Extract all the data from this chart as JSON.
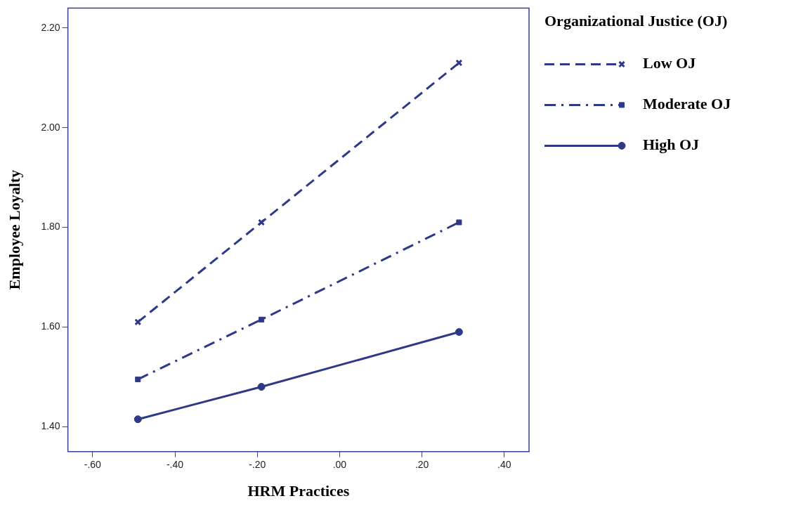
{
  "chart_data": {
    "type": "line",
    "xlabel": "HRM Practices",
    "ylabel": "Employee Loyalty",
    "legend_title": "Organizational Justice (OJ)",
    "legend": "top right",
    "xlim": [
      -0.66,
      0.46
    ],
    "xticks": [
      {
        "value": -0.6,
        "label": "-.60"
      },
      {
        "value": -0.4,
        "label": "-.40"
      },
      {
        "value": -0.2,
        "label": "-.20"
      },
      {
        "value": 0,
        "label": ".00"
      },
      {
        "value": 0.2,
        "label": ".20"
      },
      {
        "value": 0.4,
        "label": ".40"
      }
    ],
    "ylim": [
      1.35,
      2.24
    ],
    "yticks": [
      {
        "value": 1.4,
        "label": "1.40"
      },
      {
        "value": 1.6,
        "label": "1.60"
      },
      {
        "value": 1.8,
        "label": "1.80"
      },
      {
        "value": 2.0,
        "label": "2.00"
      },
      {
        "value": 2.2,
        "label": "2.20"
      }
    ],
    "grid": false,
    "x": [
      -0.49,
      -0.19,
      0.29
    ],
    "series": [
      {
        "name": "Low OJ",
        "color": "#2e3a87",
        "values": [
          1.61,
          1.81,
          2.13
        ],
        "line_style": "dashed",
        "marker": "cross"
      },
      {
        "name": "Moderate OJ",
        "color": "#2e3a87",
        "values": [
          1.495,
          1.615,
          1.81
        ],
        "line_style": "dashdot",
        "marker": "square"
      },
      {
        "name": "High OJ",
        "color": "#2e3a87",
        "values": [
          1.415,
          1.48,
          1.59
        ],
        "line_style": "solid",
        "marker": "circle"
      }
    ]
  }
}
